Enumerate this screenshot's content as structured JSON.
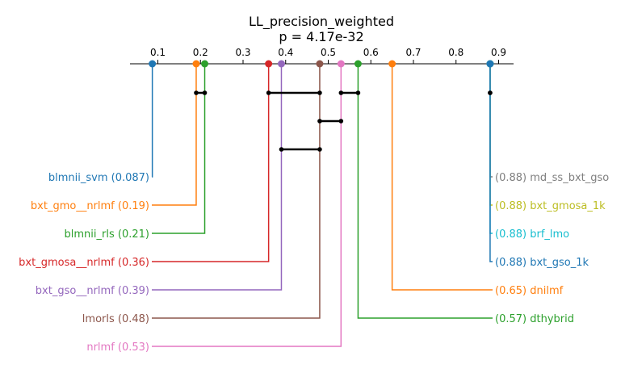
{
  "chart_data": {
    "type": "critical-difference",
    "title": "LL_precision_weighted",
    "subtitle": "p = 4.17e-32",
    "axis": {
      "range": [
        0.08,
        0.935
      ],
      "ticks": [
        0.1,
        0.2,
        0.3,
        0.4,
        0.5,
        0.6,
        0.7,
        0.8,
        0.9
      ],
      "tick_labels": [
        "0.1",
        "0.2",
        "0.3",
        "0.4",
        "0.5",
        "0.6",
        "0.7",
        "0.8",
        "0.9"
      ],
      "position": "top"
    },
    "methods": [
      {
        "name": "blmnii_svm",
        "value": 0.087,
        "value_label": "(0.087)",
        "color": "#1f77b4",
        "side": "left"
      },
      {
        "name": "bxt_gmo__nrlmf",
        "value": 0.19,
        "value_label": "(0.19)",
        "color": "#ff7f0e",
        "side": "left"
      },
      {
        "name": "blmnii_rls",
        "value": 0.21,
        "value_label": "(0.21)",
        "color": "#2ca02c",
        "side": "left"
      },
      {
        "name": "bxt_gmosa__nrlmf",
        "value": 0.36,
        "value_label": "(0.36)",
        "color": "#d62728",
        "side": "left"
      },
      {
        "name": "bxt_gso__nrlmf",
        "value": 0.39,
        "value_label": "(0.39)",
        "color": "#9467bd",
        "side": "left"
      },
      {
        "name": "lmorls",
        "value": 0.48,
        "value_label": "(0.48)",
        "color": "#8c564b",
        "side": "left"
      },
      {
        "name": "nrlmf",
        "value": 0.53,
        "value_label": "(0.53)",
        "color": "#e377c2",
        "side": "left"
      },
      {
        "name": "md_ss_bxt_gso",
        "value": 0.88,
        "value_label": "(0.88)",
        "color": "#7f7f7f",
        "side": "right"
      },
      {
        "name": "bxt_gmosa_1k",
        "value": 0.88,
        "value_label": "(0.88)",
        "color": "#bcbd22",
        "side": "right"
      },
      {
        "name": "brf_lmo",
        "value": 0.88,
        "value_label": "(0.88)",
        "color": "#17becf",
        "side": "right"
      },
      {
        "name": "bxt_gso_1k",
        "value": 0.88,
        "value_label": "(0.88)",
        "color": "#1f77b4",
        "side": "right"
      },
      {
        "name": "dnilmf",
        "value": 0.65,
        "value_label": "(0.65)",
        "color": "#ff7f0e",
        "side": "right"
      },
      {
        "name": "dthybrid",
        "value": 0.57,
        "value_label": "(0.57)",
        "color": "#2ca02c",
        "side": "right"
      }
    ],
    "cliques": [
      {
        "start": 0.19,
        "end": 0.21
      },
      {
        "start": 0.88,
        "end": 0.88
      },
      {
        "start": 0.36,
        "end": 0.48
      },
      {
        "start": 0.53,
        "end": 0.57
      },
      {
        "start": 0.48,
        "end": 0.53
      },
      {
        "start": 0.39,
        "end": 0.48
      }
    ]
  }
}
